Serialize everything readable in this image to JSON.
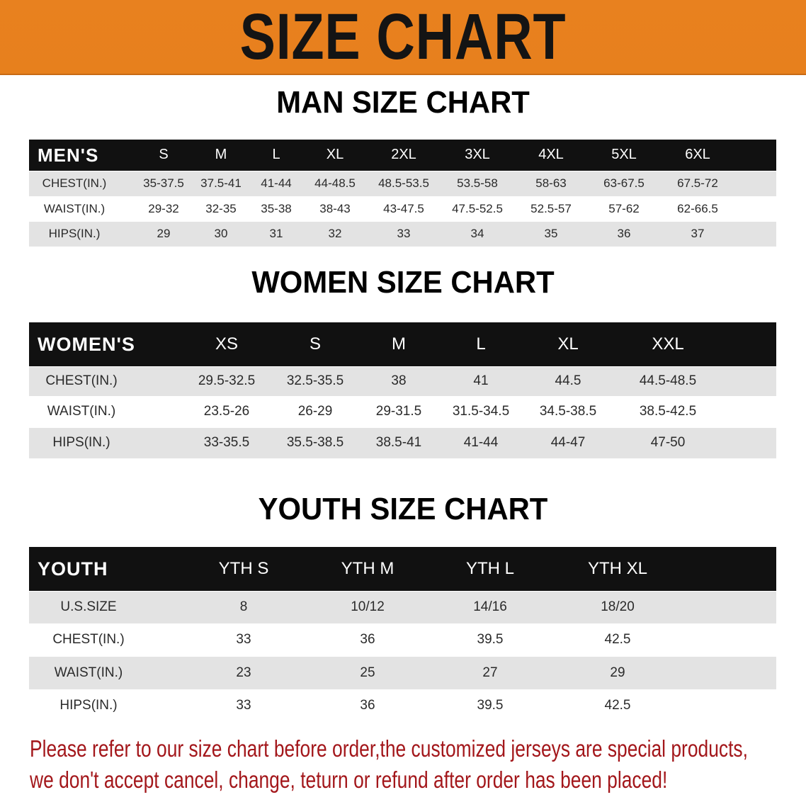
{
  "banner": {
    "title": "SIZE CHART",
    "color": "#e8801e"
  },
  "men": {
    "title": "MAN SIZE CHART",
    "header_label": "MEN'S",
    "sizes": [
      "S",
      "M",
      "L",
      "XL",
      "2XL",
      "3XL",
      "4XL",
      "5XL",
      "6XL"
    ],
    "rows": [
      {
        "label": "CHEST(IN.)",
        "values": [
          "35-37.5",
          "37.5-41",
          "41-44",
          "44-48.5",
          "48.5-53.5",
          "53.5-58",
          "58-63",
          "63-67.5",
          "67.5-72"
        ]
      },
      {
        "label": "WAIST(IN.)",
        "values": [
          "29-32",
          "32-35",
          "35-38",
          "38-43",
          "43-47.5",
          "47.5-52.5",
          "52.5-57",
          "57-62",
          "62-66.5"
        ]
      },
      {
        "label": "HIPS(IN.)",
        "values": [
          "29",
          "30",
          "31",
          "32",
          "33",
          "34",
          "35",
          "36",
          "37"
        ]
      }
    ]
  },
  "women": {
    "title": "WOMEN SIZE CHART",
    "header_label": "WOMEN'S",
    "sizes": [
      "XS",
      "S",
      "M",
      "L",
      "XL",
      "XXL"
    ],
    "rows": [
      {
        "label": "CHEST(IN.)",
        "values": [
          "29.5-32.5",
          "32.5-35.5",
          "38",
          "41",
          "44.5",
          "44.5-48.5"
        ]
      },
      {
        "label": "WAIST(IN.)",
        "values": [
          "23.5-26",
          "26-29",
          "29-31.5",
          "31.5-34.5",
          "34.5-38.5",
          "38.5-42.5"
        ]
      },
      {
        "label": "HIPS(IN.)",
        "values": [
          "33-35.5",
          "35.5-38.5",
          "38.5-41",
          "41-44",
          "44-47",
          "47-50"
        ]
      }
    ]
  },
  "youth": {
    "title": "YOUTH SIZE CHART",
    "header_label": "YOUTH",
    "sizes": [
      "YTH S",
      "YTH M",
      "YTH L",
      "YTH XL"
    ],
    "rows": [
      {
        "label": "U.S.SIZE",
        "values": [
          "8",
          "10/12",
          "14/16",
          "18/20"
        ]
      },
      {
        "label": "CHEST(IN.)",
        "values": [
          "33",
          "36",
          "39.5",
          "42.5"
        ]
      },
      {
        "label": "WAIST(IN.)",
        "values": [
          "23",
          "25",
          "27",
          "29"
        ]
      },
      {
        "label": "HIPS(IN.)",
        "values": [
          "33",
          "36",
          "39.5",
          "42.5"
        ]
      }
    ]
  },
  "footer": {
    "line1": "Please refer to our size chart before order,the customized jerseys are special products,",
    "line2": "we don't accept cancel, change, teturn or refund after order has been placed!",
    "color": "#a3171b"
  }
}
